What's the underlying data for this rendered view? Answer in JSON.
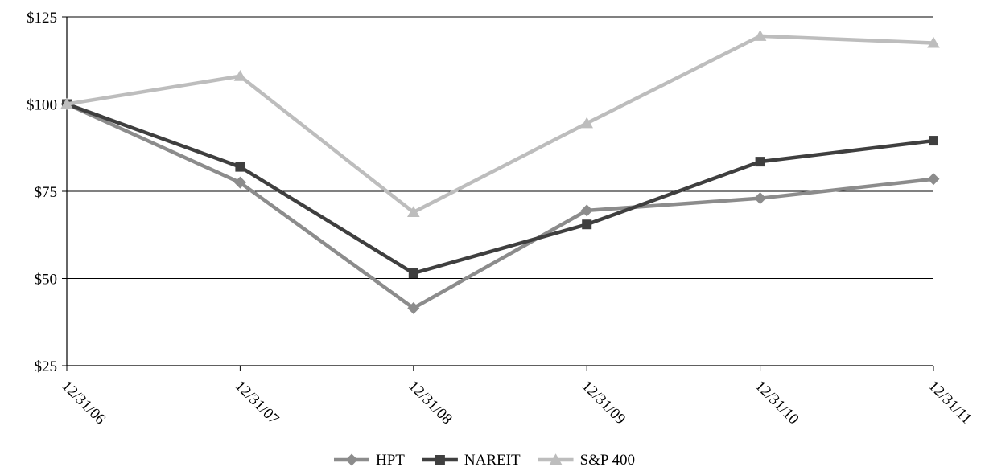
{
  "chart_data": {
    "type": "line",
    "x": [
      "12/31/06",
      "12/31/07",
      "12/31/08",
      "12/31/09",
      "12/31/10",
      "12/31/11"
    ],
    "yticks": [
      "$25",
      "$50",
      "$75",
      "$100",
      "$125"
    ],
    "ylim": [
      25,
      125
    ],
    "grid": true,
    "legend_position": "bottom",
    "series": [
      {
        "name": "HPT",
        "marker": "diamond",
        "color": "#8c8c8c",
        "values": [
          100,
          77.5,
          41.5,
          69.5,
          73,
          78.5
        ]
      },
      {
        "name": "NAREIT",
        "marker": "square",
        "color": "#3f3f3f",
        "values": [
          100,
          82,
          51.5,
          65.5,
          83.5,
          89.5
        ]
      },
      {
        "name": "S&P 400",
        "marker": "triangle",
        "color": "#bdbdbd",
        "values": [
          100,
          108,
          69,
          94.5,
          119.5,
          117.5
        ]
      }
    ]
  }
}
